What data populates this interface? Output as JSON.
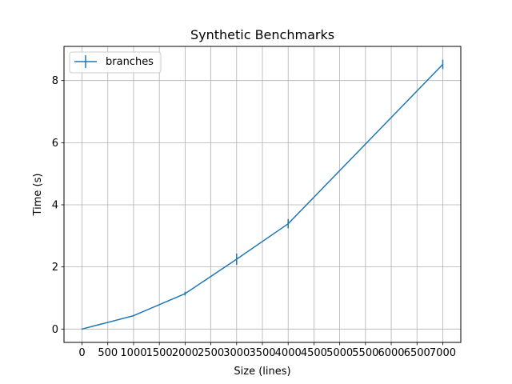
{
  "chart_data": {
    "type": "line",
    "title": "Synthetic Benchmarks",
    "xlabel": "Size (lines)",
    "ylabel": "Time (s)",
    "xlim": [
      -350,
      7350
    ],
    "ylim": [
      -0.43,
      9.1
    ],
    "xticks": [
      0,
      500,
      1000,
      1500,
      2000,
      2500,
      3000,
      3500,
      4000,
      4500,
      5000,
      5500,
      6000,
      6500,
      7000
    ],
    "xtick_labels": [
      "0",
      "500",
      "1000",
      "1500",
      "2000",
      "2500",
      "3000",
      "3500",
      "4000",
      "4500",
      "5000",
      "5500",
      "6000",
      "6500",
      "7000"
    ],
    "yticks": [
      0,
      2,
      4,
      6,
      8
    ],
    "ytick_labels": [
      "0",
      "2",
      "4",
      "6",
      "8"
    ],
    "grid": true,
    "legend_position": "upper-left",
    "series": [
      {
        "name": "branches",
        "color": "#1f77b4",
        "x": [
          0,
          1000,
          2000,
          3000,
          4000,
          7000
        ],
        "y": [
          0.0,
          0.43,
          1.14,
          2.25,
          3.39,
          8.52
        ],
        "yerr": [
          0.0,
          0.02,
          0.06,
          0.18,
          0.15,
          0.15
        ]
      }
    ]
  }
}
